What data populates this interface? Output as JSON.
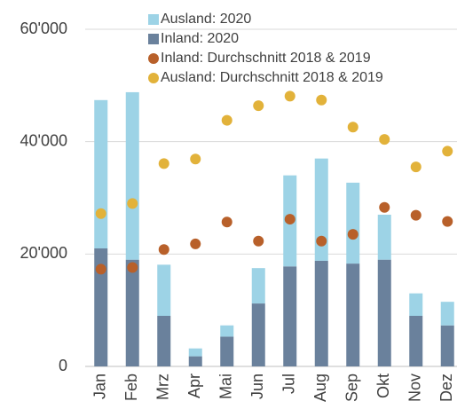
{
  "chart_data": {
    "type": "bar",
    "stacked": true,
    "categories": [
      "Jan",
      "Feb",
      "Mrz",
      "Apr",
      "Mai",
      "Jun",
      "Jul",
      "Aug",
      "Sep",
      "Okt",
      "Nov",
      "Dez"
    ],
    "series": [
      {
        "name": "Ausland: 2020",
        "type": "bar",
        "color": "#9dd3e6",
        "values": [
          26400,
          29800,
          9100,
          1400,
          2000,
          6300,
          16200,
          18200,
          14400,
          8000,
          4000,
          4200
        ]
      },
      {
        "name": "Inland: 2020",
        "type": "bar",
        "color": "#6a819c",
        "values": [
          21000,
          19000,
          9000,
          1800,
          5300,
          11200,
          17800,
          18800,
          18300,
          19000,
          9000,
          7300
        ]
      },
      {
        "name": "Inland: Durchschnitt 2018 & 2019",
        "type": "scatter",
        "color": "#b8602a",
        "values": [
          17300,
          17600,
          20800,
          21800,
          25700,
          22300,
          26200,
          22300,
          23500,
          28300,
          26900,
          25800
        ]
      },
      {
        "name": "Ausland: Durchschnitt 2018 & 2019",
        "type": "scatter",
        "color": "#e2b23a",
        "values": [
          27200,
          29000,
          36100,
          36900,
          43800,
          46400,
          48100,
          47400,
          42600,
          40400,
          35500,
          38300
        ]
      }
    ],
    "stack_order": [
      1,
      0
    ],
    "ylim": [
      0,
      60000
    ],
    "yticks": [
      0,
      {
        "value": 20000,
        "label": "20'000"
      },
      {
        "value": 40000,
        "label": "40'000"
      },
      {
        "value": 60000,
        "label": "60'000"
      }
    ],
    "grid": true
  }
}
